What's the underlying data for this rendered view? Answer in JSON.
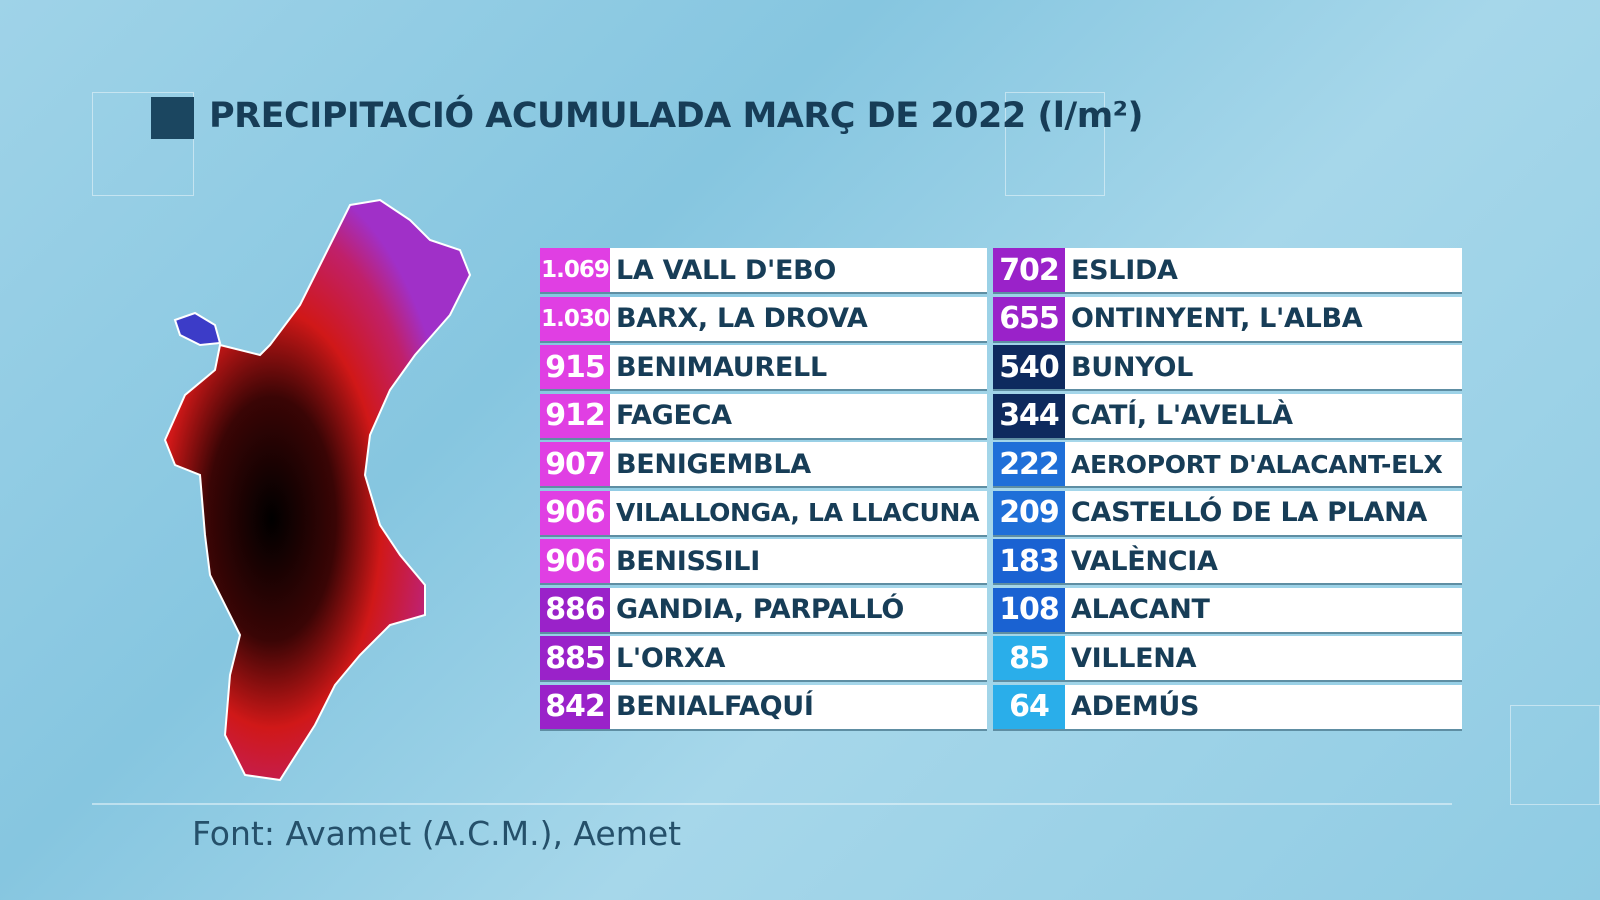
{
  "title": "PRECIPITACIÓ ACUMULADA MARÇ DE 2022 (l/m²)",
  "source": "Font: Avamet (A.C.M.), Aemet",
  "left_table": [
    {
      "value": "1.069",
      "name": "LA VALL D'EBO",
      "color": "#e03fe3"
    },
    {
      "value": "1.030",
      "name": "BARX, LA DROVA",
      "color": "#e03fe3"
    },
    {
      "value": "915",
      "name": "BENIMAURELL",
      "color": "#e03fe3"
    },
    {
      "value": "912",
      "name": "FAGECA",
      "color": "#e03fe3"
    },
    {
      "value": "907",
      "name": "BENIGEMBLA",
      "color": "#e03fe3"
    },
    {
      "value": "906",
      "name": "VILALLONGA, LA LLACUNA",
      "color": "#e03fe3"
    },
    {
      "value": "906",
      "name": "BENISSILI",
      "color": "#e03fe3"
    },
    {
      "value": "886",
      "name": "GANDIA, PARPALLÓ",
      "color": "#9a22c9"
    },
    {
      "value": "885",
      "name": "L'ORXA",
      "color": "#9a22c9"
    },
    {
      "value": "842",
      "name": "BENIALFAQUÍ",
      "color": "#9a22c9"
    }
  ],
  "right_table": [
    {
      "value": "702",
      "name": "ESLIDA",
      "color": "#9a22c9"
    },
    {
      "value": "655",
      "name": "ONTINYENT, L'ALBA",
      "color": "#9a22c9"
    },
    {
      "value": "540",
      "name": "BUNYOL",
      "color": "#0e2a5e"
    },
    {
      "value": "344",
      "name": "CATÍ, L'AVELLÀ",
      "color": "#0e2a5e"
    },
    {
      "value": "222",
      "name": "AEROPORT D'ALACANT-ELX",
      "color": "#1f6fd8"
    },
    {
      "value": "209",
      "name": "CASTELLÓ DE LA PLANA",
      "color": "#1f6fd8"
    },
    {
      "value": "183",
      "name": "VALÈNCIA",
      "color": "#1a62d2"
    },
    {
      "value": "108",
      "name": "ALACANT",
      "color": "#1a62d2"
    },
    {
      "value": "85",
      "name": "VILLENA",
      "color": "#2aaeea"
    },
    {
      "value": "64",
      "name": "ADEMÚS",
      "color": "#2aaeea"
    }
  ]
}
